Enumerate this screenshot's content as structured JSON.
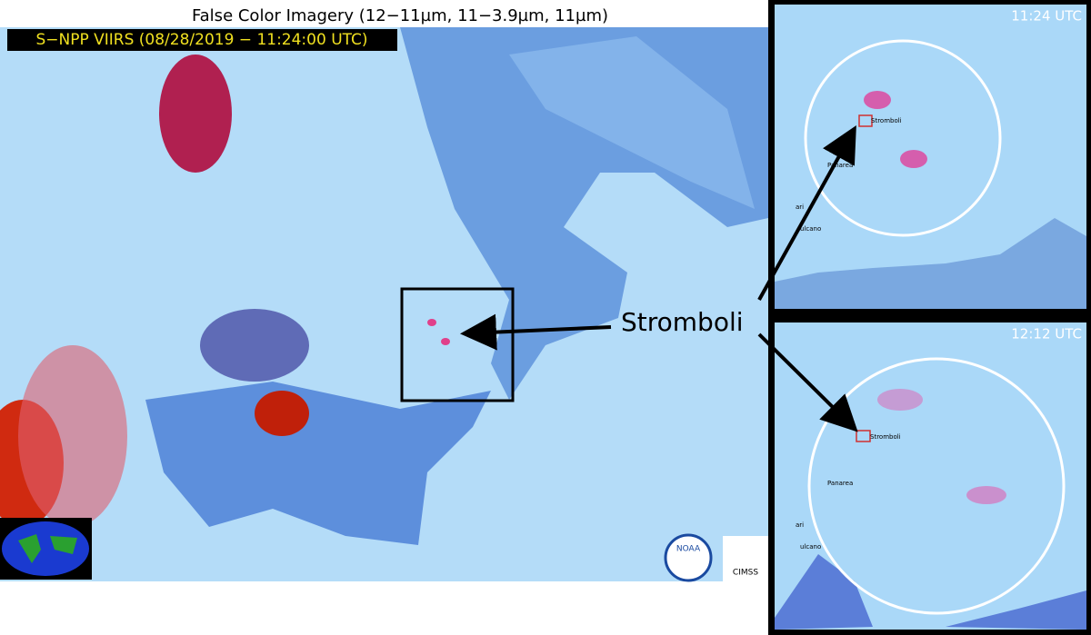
{
  "header": {
    "title": "False Color Imagery (12−11µm, 11−3.9µm, 11µm)",
    "subtitle": "S−NPP VIIRS (08/28/2019 − 11:24:00 UTC)"
  },
  "main": {
    "label": "Stromboli"
  },
  "insets": [
    {
      "time": "11:24 UTC",
      "labels": [
        "Stromboli",
        "Panarea",
        "ari",
        "ulcano"
      ]
    },
    {
      "time": "12:12 UTC",
      "labels": [
        "Stromboli",
        "Panarea",
        "ari",
        "ulcano"
      ]
    }
  ],
  "logos": [
    "NOAA",
    "CIMSS"
  ]
}
